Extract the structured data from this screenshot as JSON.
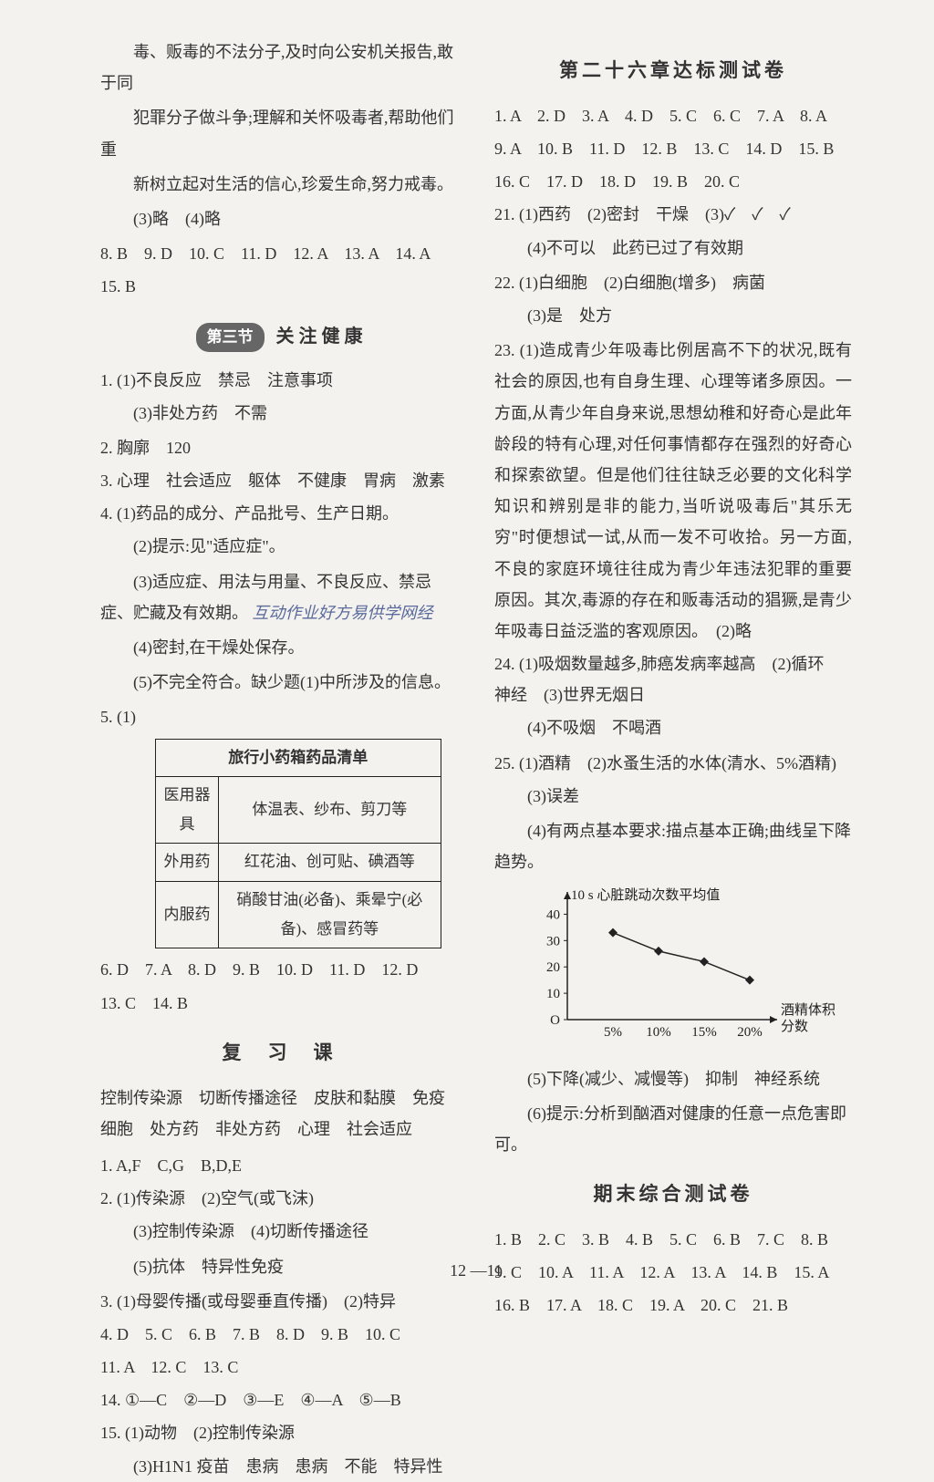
{
  "left": {
    "intro_lines": [
      "毒、贩毒的不法分子,及时向公安机关报告,敢于同",
      "犯罪分子做斗争;理解和关怀吸毒者,帮助他们重",
      "新树立起对生活的信心,珍爱生命,努力戒毒。",
      "(3)略　(4)略"
    ],
    "row_answers_1": "8. B　9. D　10. C　11. D　12. A　13. A　14. A",
    "row_answers_2": "15. B",
    "section3_badge": "第三节",
    "section3_title": "关 注 健 康",
    "q1_1": "(1)不良反应　禁忌　注意事项",
    "q1_3": "(3)非处方药　不需",
    "q2": "胸廓　120",
    "q3": "心理　社会适应　躯体　不健康　胃病　激素",
    "q4_1": "(1)药品的成分、产品批号、生产日期。",
    "q4_2": "(2)提示:见\"适应症\"。",
    "q4_3": "(3)适应症、用法与用量、不良反应、禁忌症、贮藏及有效期。",
    "q4_ann": "互动作业好方易供学网经",
    "q4_4": "(4)密封,在干燥处保存。",
    "q4_5": "(5)不完全符合。缺少题(1)中所涉及的信息。",
    "q5_label": "5. (1)",
    "medkit_title": "旅行小药箱药品清单",
    "medkit_rows": [
      [
        "医用器具",
        "体温表、纱布、剪刀等"
      ],
      [
        "外用药",
        "红花油、创可贴、碘酒等"
      ],
      [
        "内服药",
        "硝酸甘油(必备)、乘晕宁(必备)、感冒药等"
      ]
    ],
    "row_answers_3": "6. D　7. A　8. D　9. B　10. D　11. D　12. D",
    "row_answers_4": "13. C　14. B",
    "review_title": "复　习　课",
    "review_fill": "控制传染源　切断传播途径　皮肤和黏膜　免疫细胞　处方药　非处方药　心理　社会适应",
    "r1": "A,F　C,G　B,D,E",
    "r2_1": "(1)传染源　(2)空气(或飞沫)",
    "r2_3": "(3)控制传染源　(4)切断传播途径",
    "r2_5": "(5)抗体　特异性免疫",
    "r3": "(1)母婴传播(或母婴垂直传播)　(2)特异",
    "r_row": "4. D　5. C　6. B　7. B　8. D　9. B　10. C",
    "r_row2": "11. A　12. C　13. C",
    "r14": "①—C　②—D　③—E　④—A　⑤—B",
    "r15_1": "(1)动物　(2)控制传染源",
    "r15_3": "(3)H1N1 疫苗　患病　患病　不能　特异性"
  },
  "right": {
    "ch26_title": "第二十六章达标测试卷",
    "ch26_r1": "1. A　2. D　3. A　4. D　5. C　6. C　7. A　8. A",
    "ch26_r2": "9. A　10. B　11. D　12. B　13. C　14. D　15. B",
    "ch26_r3": "16. C　17. D　18. D　19. B　20. C",
    "q21_1": "(1)西药　(2)密封　干燥　(3)✓　✓　✓",
    "q21_4": "(4)不可以　此药已过了有效期",
    "q22_1": "(1)白细胞　(2)白细胞(增多)　病菌",
    "q22_3": "(3)是　处方",
    "q23_para": "(1)造成青少年吸毒比例居高不下的状况,既有社会的原因,也有自身生理、心理等诸多原因。一方面,从青少年自身来说,思想幼稚和好奇心是此年龄段的特有心理,对任何事情都存在强烈的好奇心和探索欲望。但是他们往往缺乏必要的文化科学知识和辨别是非的能力,当听说吸毒后\"其乐无穷\"时便想试一试,从而一发不可收拾。另一方面,不良的家庭环境往往成为青少年违法犯罪的重要原因。其次,毒源的存在和贩毒活动的猖獗,是青少年吸毒日益泛滥的客观原因。　(2)略",
    "q24_1": "(1)吸烟数量越多,肺癌发病率越高　(2)循环　神经　(3)世界无烟日",
    "q24_4": "(4)不吸烟　不喝酒",
    "q25_1": "(1)酒精　(2)水蚤生活的水体(清水、5%酒精)",
    "q25_3": "(3)误差",
    "q25_4": "(4)有两点基本要求:描点基本正确;曲线呈下降趋势。",
    "chart": {
      "type": "line",
      "ylabel": "10 s 心脏跳动次数平均值",
      "xlabel": "酒精体积分数",
      "x_ticks": [
        "5%",
        "10%",
        "15%",
        "20%"
      ],
      "y_ticks": [
        0,
        10,
        20,
        30,
        40
      ],
      "ylim": [
        0,
        45
      ],
      "points_x": [
        1,
        2,
        3,
        4
      ],
      "points_y": [
        33,
        26,
        22,
        15
      ],
      "marker": "diamond",
      "marker_fill": "#222222",
      "line_color": "#222222",
      "axis_color": "#222222",
      "font_size": 15
    },
    "q25_5": "(5)下降(减少、减慢等)　抑制　神经系统",
    "q25_6": "(6)提示:分析到酗酒对健康的任意一点危害即可。",
    "final_title": "期末综合测试卷",
    "f_r1": "1. B　2. C　3. B　4. B　5. C　6. B　7. C　8. B",
    "f_r2": "9. C　10. A　11. A　12. A　13. A　14. B　15. A",
    "f_r3": "16. B　17. A　18. C　19. A　20. C　21. B"
  },
  "footer": "12 —11"
}
